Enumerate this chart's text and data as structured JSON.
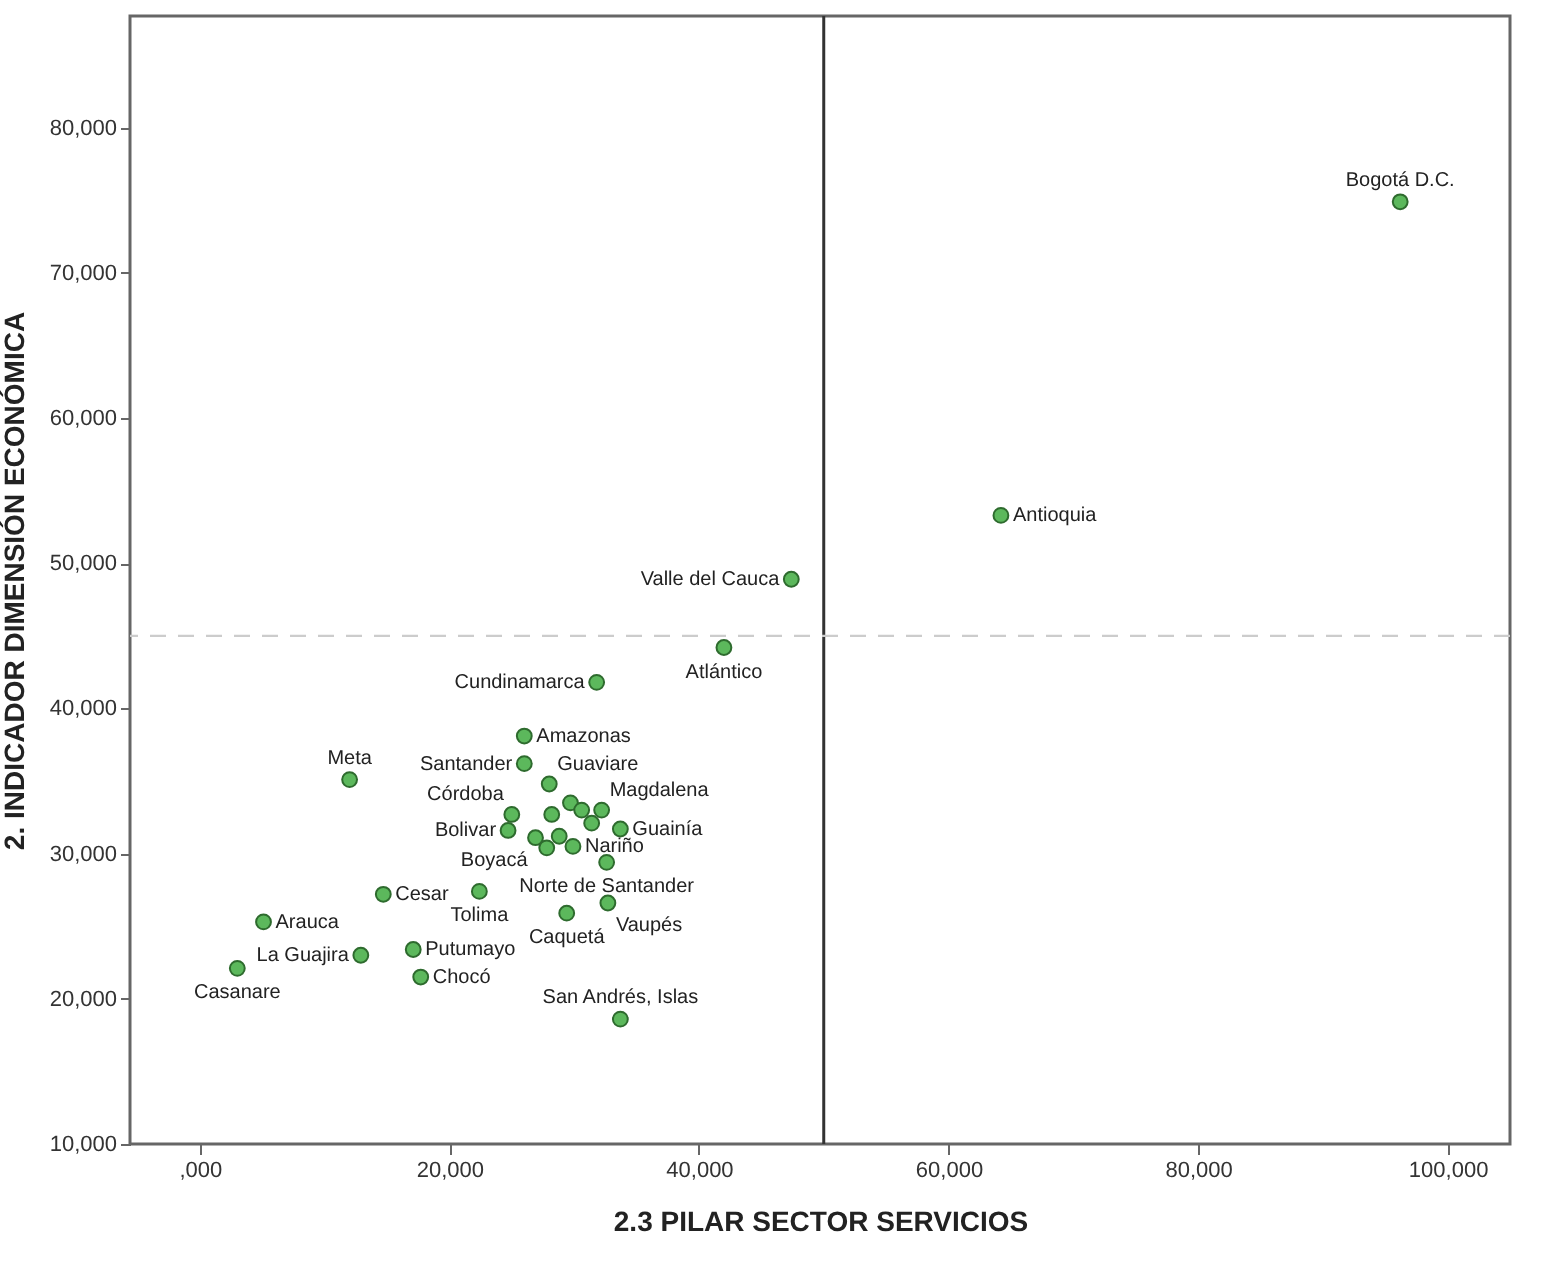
{
  "chart_data": {
    "type": "scatter",
    "xlabel": "2.3 PILAR SECTOR SERVICIOS",
    "ylabel": "2. INDICADOR DIMENSIÓN ECONÓMICA",
    "xlim": [
      -5600,
      105000
    ],
    "ylim": [
      10000,
      87700
    ],
    "xticks": [
      {
        "value": 0,
        "label": ",000"
      },
      {
        "value": 20000,
        "label": "20,000"
      },
      {
        "value": 40000,
        "label": "40,000"
      },
      {
        "value": 60000,
        "label": "60,000"
      },
      {
        "value": 80000,
        "label": "80,000"
      },
      {
        "value": 100000,
        "label": "100,000"
      }
    ],
    "yticks": [
      {
        "value": 10000,
        "label": "10,000"
      },
      {
        "value": 20000,
        "label": "20,000"
      },
      {
        "value": 30000,
        "label": "30,000"
      },
      {
        "value": 40000,
        "label": "40,000"
      },
      {
        "value": 50000,
        "label": "50,000"
      },
      {
        "value": 60000,
        "label": "60,000"
      },
      {
        "value": 70000,
        "label": "70,000"
      },
      {
        "value": 80000,
        "label": "80,000"
      }
    ],
    "grid": false,
    "marker": "circle",
    "series": [
      {
        "color": "#5cb85c",
        "x": [
          96200,
          64200,
          47400,
          42000,
          31800,
          26000,
          26000,
          12000,
          28000,
          29700,
          30600,
          32200,
          25000,
          28200,
          31400,
          33700,
          24700,
          26900,
          28800,
          27800,
          29900,
          32600,
          14700,
          22400,
          5100,
          12900,
          17100,
          17700,
          3000,
          29400,
          32700,
          33700
        ],
        "values": [
          74900,
          53300,
          48900,
          44200,
          41800,
          38100,
          36200,
          35100,
          34800,
          33500,
          33000,
          33000,
          32700,
          32700,
          32100,
          31700,
          31600,
          31100,
          31200,
          30400,
          30500,
          29400,
          27200,
          27400,
          25300,
          23000,
          23400,
          21500,
          22100,
          25900,
          26600,
          18600
        ]
      }
    ],
    "ref_lines": [
      {
        "axis": "x",
        "value": 50000,
        "color": "#333333",
        "line_style": "solid"
      },
      {
        "axis": "y",
        "value": 45000,
        "color": "#cccccc",
        "line_style": "dashed"
      }
    ],
    "annotations": [
      {
        "text": "Bogotá D.C.",
        "x": 96200,
        "y": 74900
      },
      {
        "text": "Antioquia",
        "x": 64200,
        "y": 53300
      },
      {
        "text": "Valle del Cauca",
        "x": 47400,
        "y": 48900
      },
      {
        "text": "Atlántico",
        "x": 42000,
        "y": 44200
      },
      {
        "text": "Cundinamarca",
        "x": 31800,
        "y": 41800
      },
      {
        "text": "Bolivar",
        "x": 24700,
        "y": 31600
      },
      {
        "text": "Amazonas",
        "x": 26000,
        "y": 38100
      },
      {
        "text": "Santander",
        "x": 26000,
        "y": 36200
      },
      {
        "text": "Meta",
        "x": 12000,
        "y": 35100
      },
      {
        "text": "Guaviare",
        "x": 28000,
        "y": 34800
      },
      {
        "text": "Magdalena",
        "x": 32200,
        "y": 33000
      },
      {
        "text": "Córdoba",
        "x": 25000,
        "y": 32700
      },
      {
        "text": "Guainía",
        "x": 33700,
        "y": 31700
      },
      {
        "text": "Norte de Santander",
        "x": 32600,
        "y": 29400
      },
      {
        "text": "Cesar",
        "x": 14700,
        "y": 27200
      },
      {
        "text": "Tolima",
        "x": 22400,
        "y": 27400
      },
      {
        "text": "Nariño",
        "x": 29900,
        "y": 30500
      },
      {
        "text": "Vaupés",
        "x": 32700,
        "y": 26600
      },
      {
        "text": "Arauca",
        "x": 5100,
        "y": 25300
      },
      {
        "text": "La Guajira",
        "x": 12900,
        "y": 23000
      },
      {
        "text": "Boyacá",
        "x": 26900,
        "y": 31100
      },
      {
        "text": "Putumayo",
        "x": 17100,
        "y": 23400
      },
      {
        "text": "Caquetá",
        "x": 29400,
        "y": 25900
      },
      {
        "text": "Casanare",
        "x": 3000,
        "y": 22100
      },
      {
        "text": "Chocó",
        "x": 17700,
        "y": 21500
      },
      {
        "text": "San Andrés, Islas",
        "x": 33700,
        "y": 18600
      }
    ]
  }
}
